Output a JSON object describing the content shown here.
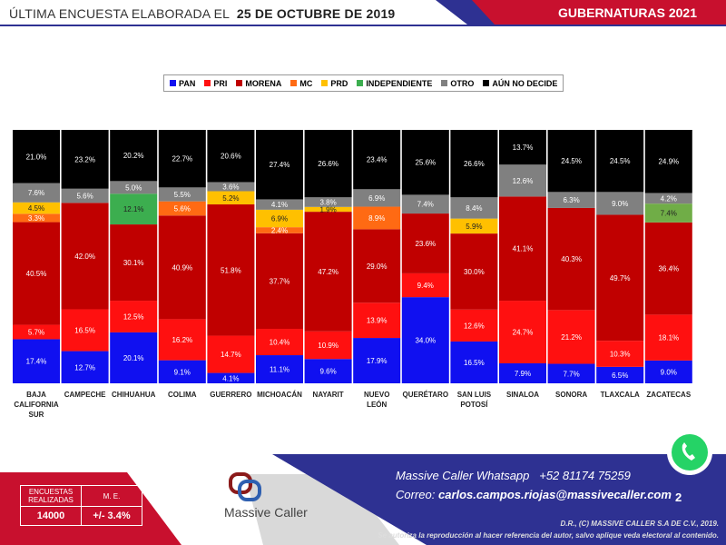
{
  "header": {
    "prefix": "ÚLTIMA ENCUESTA ELABORADA EL",
    "date": "25 DE OCTUBRE DE 2019",
    "right_title": "GUBERNATURAS 2021"
  },
  "colors": {
    "red": "#c8102e",
    "blue": "#2e3192",
    "gray": "#d9d9d9"
  },
  "chart_data": {
    "type": "bar",
    "stacked": true,
    "ylim": [
      0,
      100
    ],
    "legend_position": "top",
    "categories": [
      "BAJA CALIFORNIA SUR",
      "CAMPECHE",
      "CHIHUAHUA",
      "COLIMA",
      "GUERRERO",
      "MICHOACÁN",
      "NAYARIT",
      "NUEVO LEÓN",
      "QUERÉTARO",
      "SAN LUIS POTOSÍ",
      "SINALOA",
      "SONORA",
      "TLAXCALA",
      "ZACATECAS"
    ],
    "series": [
      {
        "name": "PAN",
        "color": "#1010f0",
        "values": [
          17.4,
          12.7,
          20.1,
          9.1,
          4.1,
          11.1,
          9.6,
          17.9,
          34.0,
          16.5,
          7.9,
          7.7,
          6.5,
          9.0
        ]
      },
      {
        "name": "PRI",
        "color": "#ff1010",
        "values": [
          5.7,
          16.5,
          12.5,
          16.2,
          14.7,
          10.4,
          10.9,
          13.9,
          9.4,
          12.6,
          24.7,
          21.2,
          10.3,
          18.1
        ]
      },
      {
        "name": "MORENA",
        "color": "#c00000",
        "values": [
          40.5,
          42.0,
          30.1,
          40.9,
          51.8,
          37.7,
          47.2,
          29.0,
          23.6,
          30.0,
          41.1,
          40.3,
          49.7,
          36.4
        ]
      },
      {
        "name": "MC",
        "color": "#ff6a13",
        "values": [
          3.3,
          0,
          0,
          5.6,
          0,
          2.4,
          0,
          8.9,
          0,
          0,
          0,
          0,
          0,
          0
        ]
      },
      {
        "name": "PRD",
        "color": "#ffc000",
        "values": [
          4.5,
          0,
          0,
          0,
          5.2,
          6.9,
          1.9,
          0,
          0,
          5.9,
          0,
          0,
          0,
          0
        ]
      },
      {
        "name": "INDEPENDIENTE",
        "color": "#3cae4f",
        "values": [
          0,
          0,
          12.1,
          0,
          0,
          0,
          0,
          0,
          0,
          0,
          0,
          0,
          0,
          7.4
        ]
      },
      {
        "name": "OTRO",
        "color": "#808080",
        "values": [
          7.6,
          5.6,
          5.0,
          5.5,
          3.6,
          4.1,
          3.8,
          6.9,
          7.4,
          8.4,
          12.6,
          6.3,
          9.0,
          4.2
        ]
      },
      {
        "name": "AÚN NO DECIDE",
        "color": "#000000",
        "values": [
          21.0,
          23.2,
          20.2,
          22.7,
          20.6,
          27.4,
          26.6,
          23.4,
          25.6,
          26.6,
          13.7,
          24.5,
          24.5,
          24.9
        ]
      }
    ]
  },
  "footer": {
    "table": {
      "h1": "ENCUESTAS REALIZADAS",
      "h2": "M. E.",
      "v1": "14000",
      "v2": "+/- 3.4%"
    },
    "logo": "Massive Caller",
    "whatsapp_label": "Massive Caller Whatsapp",
    "whatsapp_number": "+52  81174 75259",
    "email_label": "Correo:",
    "email": "carlos.campos.riojas@massivecaller.com",
    "page": "2",
    "copyright": "D.R., (C) MASSIVE CALLER S.A DE C.V., 2019.",
    "disclaimer": "Se autoriza la reproducción al hacer referencia del autor, salvo aplique veda electoral al contenido."
  }
}
